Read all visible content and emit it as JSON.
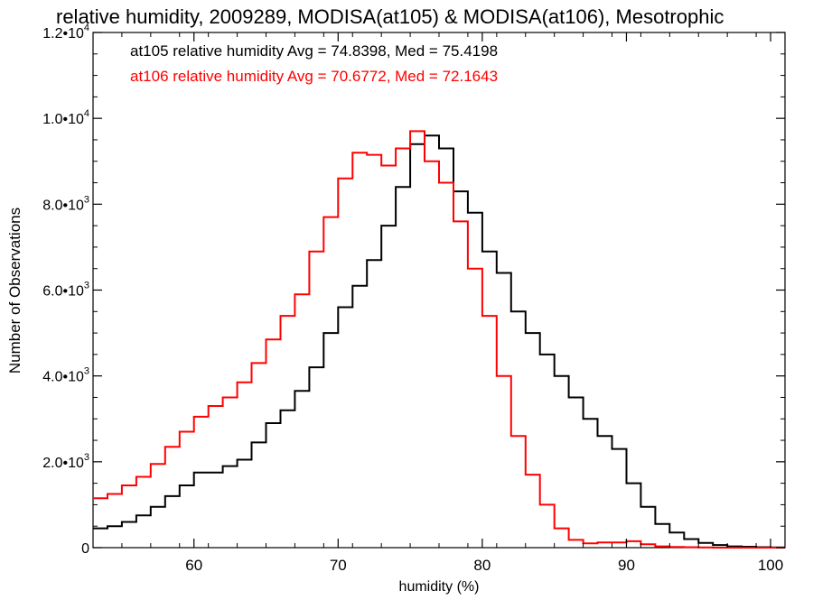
{
  "chart_data": {
    "type": "line",
    "title": "relative humidity, 2009289, MODISA(at105) & MODISA(at106), Mesotrophic",
    "xlabel": "humidity (%)",
    "ylabel": "Number of Observations",
    "xlim": [
      53,
      101
    ],
    "ylim": [
      0,
      12000
    ],
    "grid": false,
    "legend_position": "top-left",
    "x_ticks": [
      {
        "value": 60,
        "label": "60"
      },
      {
        "value": 70,
        "label": "70"
      },
      {
        "value": 80,
        "label": "80"
      },
      {
        "value": 90,
        "label": "90"
      },
      {
        "value": 100,
        "label": "100"
      }
    ],
    "y_ticks": [
      {
        "value": 0,
        "mant": "0",
        "exp": ""
      },
      {
        "value": 2000,
        "mant": "2.0•10",
        "exp": "3"
      },
      {
        "value": 4000,
        "mant": "4.0•10",
        "exp": "3"
      },
      {
        "value": 6000,
        "mant": "6.0•10",
        "exp": "3"
      },
      {
        "value": 8000,
        "mant": "8.0•10",
        "exp": "3"
      },
      {
        "value": 10000,
        "mant": "1.0•10",
        "exp": "4"
      },
      {
        "value": 12000,
        "mant": "1.2•10",
        "exp": "4"
      }
    ],
    "series": [
      {
        "name": "at105",
        "legend": "at105 relative humidity Avg = 74.8398, Med = 75.4198",
        "color": "#000000",
        "x": [
          53,
          54,
          55,
          56,
          57,
          58,
          59,
          60,
          61,
          62,
          63,
          64,
          65,
          66,
          67,
          68,
          69,
          70,
          71,
          72,
          73,
          74,
          75,
          76,
          77,
          78,
          79,
          80,
          81,
          82,
          83,
          84,
          85,
          86,
          87,
          88,
          89,
          90,
          91,
          92,
          93,
          94,
          95,
          96,
          97,
          98,
          99,
          100,
          101
        ],
        "y": [
          450,
          500,
          600,
          750,
          950,
          1200,
          1450,
          1750,
          1750,
          1900,
          2050,
          2450,
          2900,
          3200,
          3650,
          4200,
          5000,
          5600,
          6100,
          6700,
          7500,
          8400,
          9400,
          9600,
          9300,
          8300,
          7800,
          6900,
          6400,
          5500,
          5000,
          4500,
          4000,
          3500,
          3000,
          2600,
          2300,
          1500,
          950,
          550,
          350,
          200,
          110,
          60,
          30,
          20,
          10,
          5,
          0
        ]
      },
      {
        "name": "at106",
        "legend": "at106 relative humidity Avg = 70.6772, Med = 72.1643",
        "color": "#ff0000",
        "x": [
          53,
          54,
          55,
          56,
          57,
          58,
          59,
          60,
          61,
          62,
          63,
          64,
          65,
          66,
          67,
          68,
          69,
          70,
          71,
          72,
          73,
          74,
          75,
          76,
          77,
          78,
          79,
          80,
          81,
          82,
          83,
          84,
          85,
          86,
          87,
          88,
          89,
          90,
          91,
          92,
          93,
          94,
          95,
          96,
          97,
          98,
          99,
          100,
          101
        ],
        "y": [
          1150,
          1250,
          1450,
          1650,
          1950,
          2350,
          2700,
          3050,
          3300,
          3500,
          3850,
          4300,
          4850,
          5400,
          5900,
          6900,
          7700,
          8600,
          9200,
          9150,
          8900,
          9300,
          9700,
          9000,
          8500,
          7600,
          6500,
          5400,
          4000,
          2600,
          1700,
          1000,
          450,
          180,
          100,
          120,
          120,
          150,
          80,
          30,
          15,
          10,
          5,
          0,
          0,
          0,
          0,
          0,
          0
        ]
      }
    ]
  }
}
